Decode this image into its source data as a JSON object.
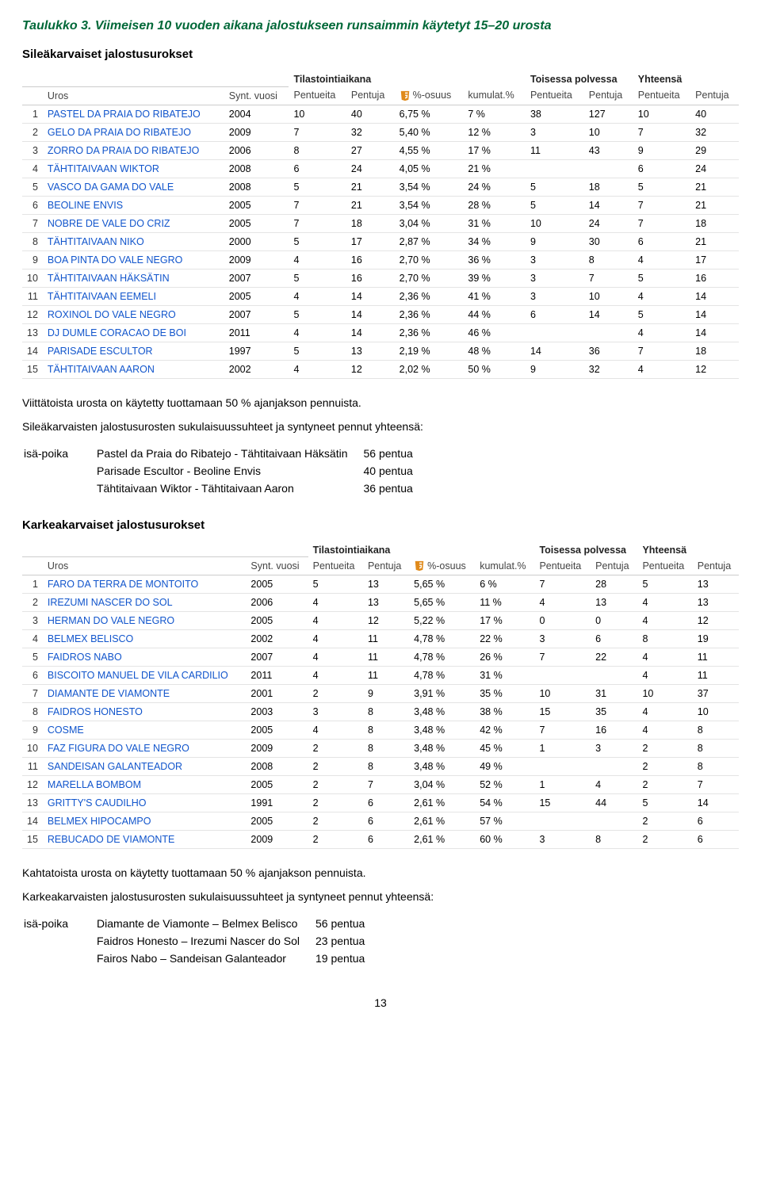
{
  "title": "Taulukko 3. Viimeisen 10 vuoden aikana jalostukseen runsaimmin käytetyt 15–20 urosta",
  "section1": {
    "heading": "Sileäkarvaiset jalostusurokset",
    "group_headers": [
      "Tilastointiaikana",
      "Toisessa polvessa",
      "Yhteensä"
    ],
    "columns": [
      "",
      "Uros",
      "Synt. vuosi",
      "Pentueita",
      "Pentuja",
      "%-osuus",
      "kumulat.%",
      "Pentueita",
      "Pentuja",
      "Pentueita",
      "Pentuja"
    ],
    "rows": [
      [
        "1",
        "PASTEL DA PRAIA DO RIBATEJO",
        "2004",
        "10",
        "40",
        "6,75 %",
        "7 %",
        "38",
        "127",
        "10",
        "40"
      ],
      [
        "2",
        "GELO DA PRAIA DO RIBATEJO",
        "2009",
        "7",
        "32",
        "5,40 %",
        "12 %",
        "3",
        "10",
        "7",
        "32"
      ],
      [
        "3",
        "ZORRO DA PRAIA DO RIBATEJO",
        "2006",
        "8",
        "27",
        "4,55 %",
        "17 %",
        "11",
        "43",
        "9",
        "29"
      ],
      [
        "4",
        "TÄHTITAIVAAN WIKTOR",
        "2008",
        "6",
        "24",
        "4,05 %",
        "21 %",
        "",
        "",
        "6",
        "24"
      ],
      [
        "5",
        "VASCO DA GAMA DO VALE",
        "2008",
        "5",
        "21",
        "3,54 %",
        "24 %",
        "5",
        "18",
        "5",
        "21"
      ],
      [
        "6",
        "BEOLINE ENVIS",
        "2005",
        "7",
        "21",
        "3,54 %",
        "28 %",
        "5",
        "14",
        "7",
        "21"
      ],
      [
        "7",
        "NOBRE DE VALE DO CRIZ",
        "2005",
        "7",
        "18",
        "3,04 %",
        "31 %",
        "10",
        "24",
        "7",
        "18"
      ],
      [
        "8",
        "TÄHTITAIVAAN NIKO",
        "2000",
        "5",
        "17",
        "2,87 %",
        "34 %",
        "9",
        "30",
        "6",
        "21"
      ],
      [
        "9",
        "BOA PINTA DO VALE NEGRO",
        "2009",
        "4",
        "16",
        "2,70 %",
        "36 %",
        "3",
        "8",
        "4",
        "17"
      ],
      [
        "10",
        "TÄHTITAIVAAN HÄKSÄTIN",
        "2007",
        "5",
        "16",
        "2,70 %",
        "39 %",
        "3",
        "7",
        "5",
        "16"
      ],
      [
        "11",
        "TÄHTITAIVAAN EEMELI",
        "2005",
        "4",
        "14",
        "2,36 %",
        "41 %",
        "3",
        "10",
        "4",
        "14"
      ],
      [
        "12",
        "ROXINOL DO VALE NEGRO",
        "2007",
        "5",
        "14",
        "2,36 %",
        "44 %",
        "6",
        "14",
        "5",
        "14"
      ],
      [
        "13",
        "DJ DUMLE CORACAO DE BOI",
        "2011",
        "4",
        "14",
        "2,36 %",
        "46 %",
        "",
        "",
        "4",
        "14"
      ],
      [
        "14",
        "PARISADE ESCULTOR",
        "1997",
        "5",
        "13",
        "2,19 %",
        "48 %",
        "14",
        "36",
        "7",
        "18"
      ],
      [
        "15",
        "TÄHTITAIVAAN AARON",
        "2002",
        "4",
        "12",
        "2,02 %",
        "50 %",
        "9",
        "32",
        "4",
        "12"
      ]
    ],
    "caption": "Viittätoista urosta on käytetty tuottamaan 50 % ajanjakson pennuista.",
    "relations_intro": "Sileäkarvaisten jalostusurosten sukulaisuussuhteet ja syntyneet pennut yhteensä:",
    "relation_label": "isä-poika",
    "relations": [
      {
        "text": "Pastel da Praia do Ribatejo - Tähtitaivaan Häksätin",
        "val": "56 pentua"
      },
      {
        "text": "Parisade Escultor - Beoline Envis",
        "val": "40 pentua"
      },
      {
        "text": "Tähtitaivaan Wiktor - Tähtitaivaan Aaron",
        "val": "36 pentua"
      }
    ]
  },
  "section2": {
    "heading": "Karkeakarvaiset jalostusurokset",
    "columns": [
      "",
      "Uros",
      "Synt. vuosi",
      "Pentueita",
      "Pentuja",
      "%-osuus",
      "kumulat.%",
      "Pentueita",
      "Pentuja",
      "Pentueita",
      "Pentuja"
    ],
    "rows": [
      [
        "1",
        "FARO DA TERRA DE MONTOITO",
        "2005",
        "5",
        "13",
        "5,65 %",
        "6 %",
        "7",
        "28",
        "5",
        "13"
      ],
      [
        "2",
        "IREZUMI NASCER DO SOL",
        "2006",
        "4",
        "13",
        "5,65 %",
        "11 %",
        "4",
        "13",
        "4",
        "13"
      ],
      [
        "3",
        "HERMAN DO VALE NEGRO",
        "2005",
        "4",
        "12",
        "5,22 %",
        "17 %",
        "0",
        "0",
        "4",
        "12"
      ],
      [
        "4",
        "BELMEX BELISCO",
        "2002",
        "4",
        "11",
        "4,78 %",
        "22 %",
        "3",
        "6",
        "8",
        "19"
      ],
      [
        "5",
        "FAIDROS NABO",
        "2007",
        "4",
        "11",
        "4,78 %",
        "26 %",
        "7",
        "22",
        "4",
        "11"
      ],
      [
        "6",
        "BISCOITO MANUEL DE VILA CARDILIO",
        "2011",
        "4",
        "11",
        "4,78 %",
        "31 %",
        "",
        "",
        "4",
        "11"
      ],
      [
        "7",
        "DIAMANTE DE VIAMONTE",
        "2001",
        "2",
        "9",
        "3,91 %",
        "35 %",
        "10",
        "31",
        "10",
        "37"
      ],
      [
        "8",
        "FAIDROS HONESTO",
        "2003",
        "3",
        "8",
        "3,48 %",
        "38 %",
        "15",
        "35",
        "4",
        "10"
      ],
      [
        "9",
        "COSME",
        "2005",
        "4",
        "8",
        "3,48 %",
        "42 %",
        "7",
        "16",
        "4",
        "8"
      ],
      [
        "10",
        "FAZ FIGURA DO VALE NEGRO",
        "2009",
        "2",
        "8",
        "3,48 %",
        "45 %",
        "1",
        "3",
        "2",
        "8"
      ],
      [
        "11",
        "SANDEISAN GALANTEADOR",
        "2008",
        "2",
        "8",
        "3,48 %",
        "49 %",
        "",
        "",
        "2",
        "8"
      ],
      [
        "12",
        "MARELLA BOMBOM",
        "2005",
        "2",
        "7",
        "3,04 %",
        "52 %",
        "1",
        "4",
        "2",
        "7"
      ],
      [
        "13",
        "GRITTY'S CAUDILHO",
        "1991",
        "2",
        "6",
        "2,61 %",
        "54 %",
        "15",
        "44",
        "5",
        "14"
      ],
      [
        "14",
        "BELMEX HIPOCAMPO",
        "2005",
        "2",
        "6",
        "2,61 %",
        "57 %",
        "",
        "",
        "2",
        "6"
      ],
      [
        "15",
        "REBUCADO DE VIAMONTE",
        "2009",
        "2",
        "6",
        "2,61 %",
        "60 %",
        "3",
        "8",
        "2",
        "6"
      ]
    ],
    "caption": "Kahtatoista urosta on käytetty tuottamaan 50 % ajanjakson pennuista.",
    "relations_intro": "Karkeakarvaisten jalostusurosten sukulaisuussuhteet ja syntyneet pennut yhteensä:",
    "relation_label": "isä-poika",
    "relations": [
      {
        "text": "Diamante de Viamonte – Belmex Belisco",
        "val": "56 pentua"
      },
      {
        "text": "Faidros Honesto – Irezumi Nascer do Sol",
        "val": "23 pentua"
      },
      {
        "text": "Fairos Nabo – Sandeisan Galanteador",
        "val": "19 pentua"
      }
    ]
  },
  "page_number": "13",
  "colors": {
    "title": "#006838",
    "link": "#1155cc",
    "h5_orange": "#e08a1a",
    "h5_dark": "#333333",
    "row_border": "#e4e4e4"
  }
}
